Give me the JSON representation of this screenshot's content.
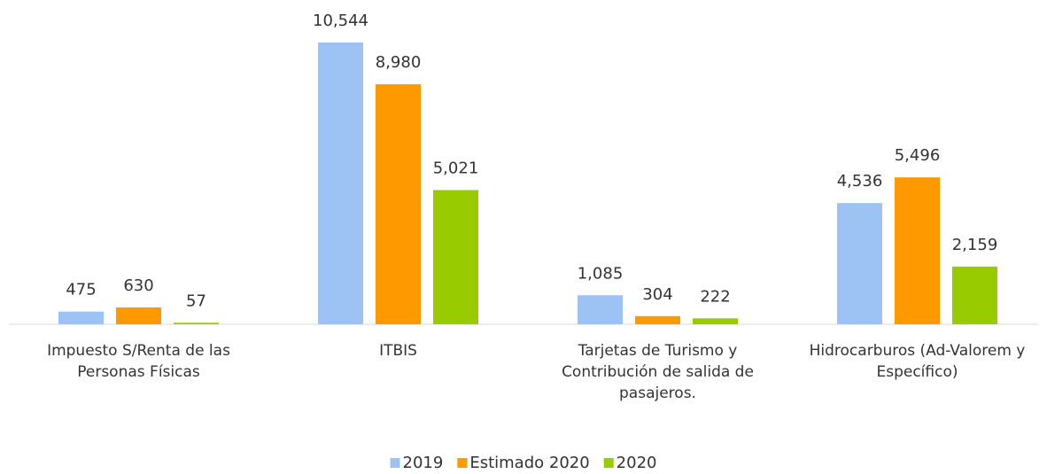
{
  "chart_data": {
    "type": "bar",
    "categories": [
      "Impuesto S/Renta de las Personas Físicas",
      "ITBIS",
      "Tarjetas de Turismo y Contribución de salida de pasajeros.",
      "Hidrocarburos (Ad-Valorem y Específico)"
    ],
    "series": [
      {
        "name": "2019",
        "color": "#9dc3f5",
        "values": [
          475,
          10544,
          1085,
          4536
        ],
        "value_labels": [
          "475",
          "10,544",
          "1,085",
          "4,536"
        ]
      },
      {
        "name": "Estimado 2020",
        "color": "#ff9900",
        "values": [
          630,
          8980,
          304,
          5496
        ],
        "value_labels": [
          "630",
          "8,980",
          "304",
          "5,496"
        ]
      },
      {
        "name": "2020",
        "color": "#99cc00",
        "values": [
          57,
          5021,
          222,
          2159
        ],
        "value_labels": [
          "57",
          "5,021",
          "222",
          "2,159"
        ]
      }
    ],
    "ylim": [
      0,
      12000
    ],
    "legend": "bottom"
  }
}
